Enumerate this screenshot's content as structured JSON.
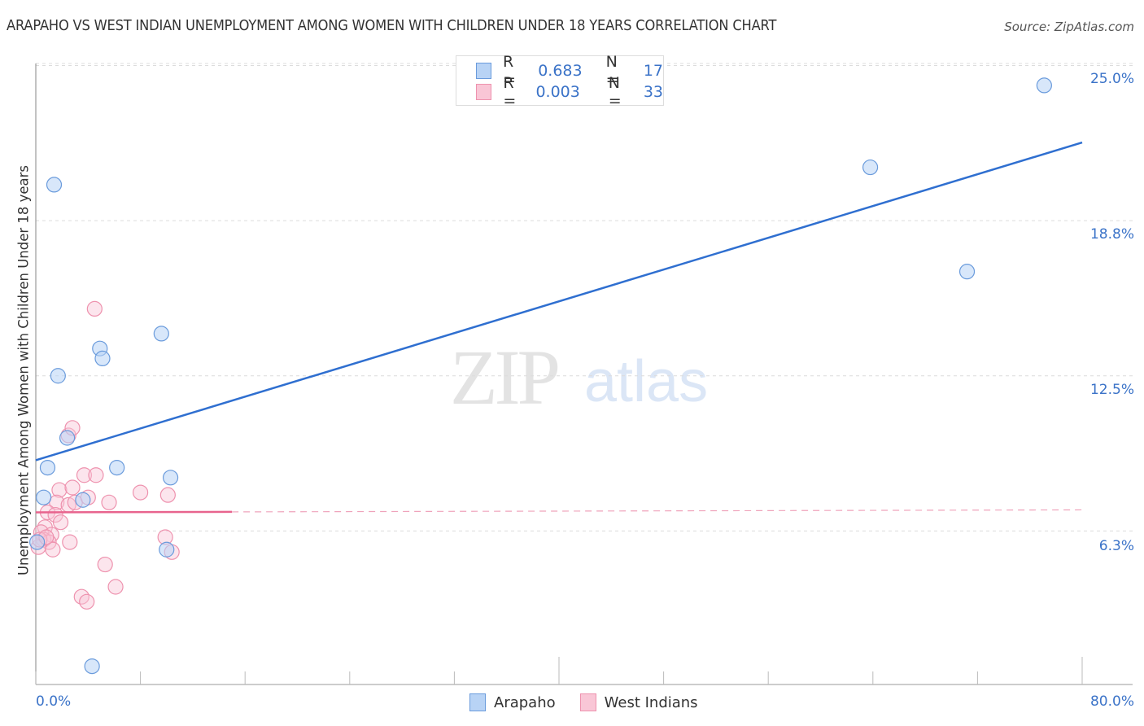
{
  "header": {
    "title": "ARAPAHO VS WEST INDIAN UNEMPLOYMENT AMONG WOMEN WITH CHILDREN UNDER 18 YEARS CORRELATION CHART",
    "source": "Source: ZipAtlas.com"
  },
  "watermark": {
    "zip": "ZIP",
    "atlas": "atlas"
  },
  "legend": {
    "rows": [
      {
        "r_label": "R =",
        "r_value": "0.683",
        "n_label": "N =",
        "n_value": "17",
        "color": "#b8d3f5",
        "border": "#6a9bdc"
      },
      {
        "r_label": "R =",
        "r_value": "0.003",
        "n_label": "N =",
        "n_value": "33",
        "color": "#f9c6d6",
        "border": "#ee92ae"
      }
    ]
  },
  "axes": {
    "y_label": "Unemployment Among Women with Children Under 18 years",
    "y_ticks": [
      "25.0%",
      "18.8%",
      "12.5%",
      "6.3%"
    ],
    "x_ticks": [
      "0.0%",
      "80.0%"
    ]
  },
  "bottom_legend": [
    {
      "label": "Arapaho",
      "color": "#b8d3f5",
      "border": "#6a9bdc"
    },
    {
      "label": "West Indians",
      "color": "#f9c6d6",
      "border": "#ee92ae"
    }
  ],
  "colors": {
    "arapaho_line": "#2f6fd0",
    "west_indian_line": "#e8648e",
    "tick_text": "#3b73c8"
  },
  "chart_data": {
    "type": "scatter",
    "title": "ARAPAHO VS WEST INDIAN UNEMPLOYMENT AMONG WOMEN WITH CHILDREN UNDER 18 YEARS CORRELATION CHART",
    "xlabel": "",
    "ylabel": "Unemployment Among Women with Children Under 18 years",
    "xlim": [
      0,
      80
    ],
    "ylim": [
      0,
      26
    ],
    "x_tick_labels": [
      "0.0%",
      "80.0%"
    ],
    "y_tick_labels": [
      "6.3%",
      "12.5%",
      "18.8%",
      "25.0%"
    ],
    "y_tick_values": [
      6.25,
      12.5,
      18.75,
      25.0
    ],
    "grid": true,
    "legend_position": "top-center",
    "series": [
      {
        "name": "Arapaho",
        "R": 0.683,
        "N": 17,
        "points": [
          [
            77.1,
            24.2
          ],
          [
            63.8,
            20.9
          ],
          [
            71.2,
            16.7
          ],
          [
            1.4,
            20.2
          ],
          [
            9.6,
            14.2
          ],
          [
            4.9,
            13.6
          ],
          [
            5.1,
            13.2
          ],
          [
            1.7,
            12.5
          ],
          [
            2.4,
            10.0
          ],
          [
            0.9,
            8.8
          ],
          [
            6.2,
            8.8
          ],
          [
            10.3,
            8.4
          ],
          [
            0.6,
            7.6
          ],
          [
            3.6,
            7.5
          ],
          [
            0.1,
            5.8
          ],
          [
            10.0,
            5.5
          ],
          [
            4.3,
            0.8
          ]
        ],
        "trend": {
          "x": [
            0,
            80
          ],
          "y": [
            9.1,
            21.9
          ]
        }
      },
      {
        "name": "West Indians",
        "R": 0.003,
        "N": 33,
        "points": [
          [
            4.5,
            15.2
          ],
          [
            2.5,
            10.1
          ],
          [
            2.8,
            10.4
          ],
          [
            3.7,
            8.5
          ],
          [
            4.6,
            8.5
          ],
          [
            8.0,
            7.8
          ],
          [
            10.1,
            7.7
          ],
          [
            1.8,
            7.9
          ],
          [
            2.8,
            8.0
          ],
          [
            1.6,
            7.4
          ],
          [
            2.5,
            7.3
          ],
          [
            3.0,
            7.4
          ],
          [
            4.0,
            7.6
          ],
          [
            5.6,
            7.4
          ],
          [
            0.9,
            7.0
          ],
          [
            1.5,
            6.9
          ],
          [
            1.9,
            6.6
          ],
          [
            0.7,
            6.4
          ],
          [
            0.4,
            6.2
          ],
          [
            1.2,
            6.1
          ],
          [
            0.6,
            5.9
          ],
          [
            1.0,
            5.8
          ],
          [
            0.2,
            5.6
          ],
          [
            1.3,
            5.5
          ],
          [
            2.6,
            5.8
          ],
          [
            9.9,
            6.0
          ],
          [
            10.4,
            5.4
          ],
          [
            5.3,
            4.9
          ],
          [
            6.1,
            4.0
          ],
          [
            3.5,
            3.6
          ],
          [
            3.9,
            3.4
          ],
          [
            0.3,
            5.9
          ],
          [
            0.8,
            6.0
          ]
        ],
        "trend": {
          "x": [
            0,
            80
          ],
          "y": [
            7.0,
            7.1
          ],
          "solid_until_x": 15
        }
      }
    ]
  }
}
